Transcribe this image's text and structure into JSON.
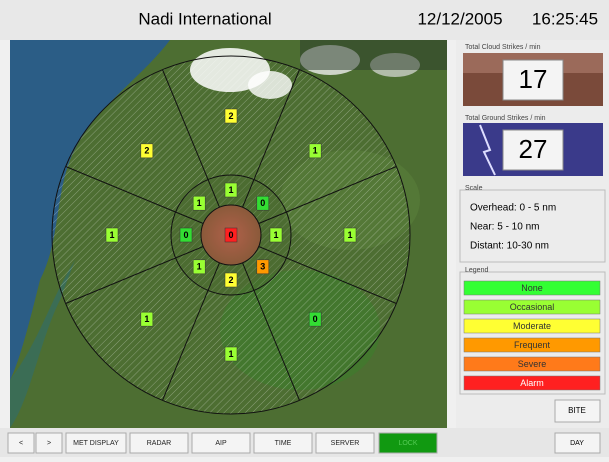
{
  "header": {
    "title": "Nadi International",
    "date": "12/12/2005",
    "time": "16:25:45"
  },
  "map": {
    "outer_sectors": [
      {
        "value": 2,
        "color": "#ffff33"
      },
      {
        "value": 1,
        "color": "#99ff33"
      },
      {
        "value": 1,
        "color": "#99ff33"
      },
      {
        "value": 0,
        "color": "#33dd33"
      },
      {
        "value": 1,
        "color": "#99ff33"
      },
      {
        "value": 1,
        "color": "#99ff33"
      },
      {
        "value": 1,
        "color": "#99ff33"
      },
      {
        "value": 2,
        "color": "#ffff33"
      }
    ],
    "middle_sectors": [
      {
        "value": 1,
        "color": "#99ff33"
      },
      {
        "value": 0,
        "color": "#33dd33"
      },
      {
        "value": 1,
        "color": "#99ff33"
      },
      {
        "value": 3,
        "color": "#ff9900"
      },
      {
        "value": 2,
        "color": "#ffff33"
      },
      {
        "value": 1,
        "color": "#99ff33"
      },
      {
        "value": 0,
        "color": "#33dd33"
      },
      {
        "value": 1,
        "color": "#99ff33"
      }
    ],
    "center": {
      "value": 0,
      "color": "#ff2020"
    }
  },
  "cloud_strikes": {
    "label": "Total Cloud Strikes / min",
    "value": 17
  },
  "ground_strikes": {
    "label": "Total Ground Strikes / min",
    "value": 27
  },
  "scale": {
    "title": "Scale",
    "items": [
      "Overhead: 0 - 5 nm",
      "Near: 5 - 10 nm",
      "Distant: 10-30 nm"
    ]
  },
  "legend": {
    "title": "Legend",
    "items": [
      {
        "label": "None",
        "color": "#33ff33"
      },
      {
        "label": "Occasional",
        "color": "#99ff33"
      },
      {
        "label": "Moderate",
        "color": "#ffff33"
      },
      {
        "label": "Frequent",
        "color": "#ff9900"
      },
      {
        "label": "Severe",
        "color": "#ff7a1a"
      },
      {
        "label": "Alarm",
        "color": "#ff2020"
      }
    ]
  },
  "buttons": [
    "<",
    ">",
    "MET DISPLAY",
    "RADAR",
    "AIP",
    "TIME",
    "SERVER",
    "LOCK"
  ],
  "bite": "BITE",
  "day": "DAY"
}
